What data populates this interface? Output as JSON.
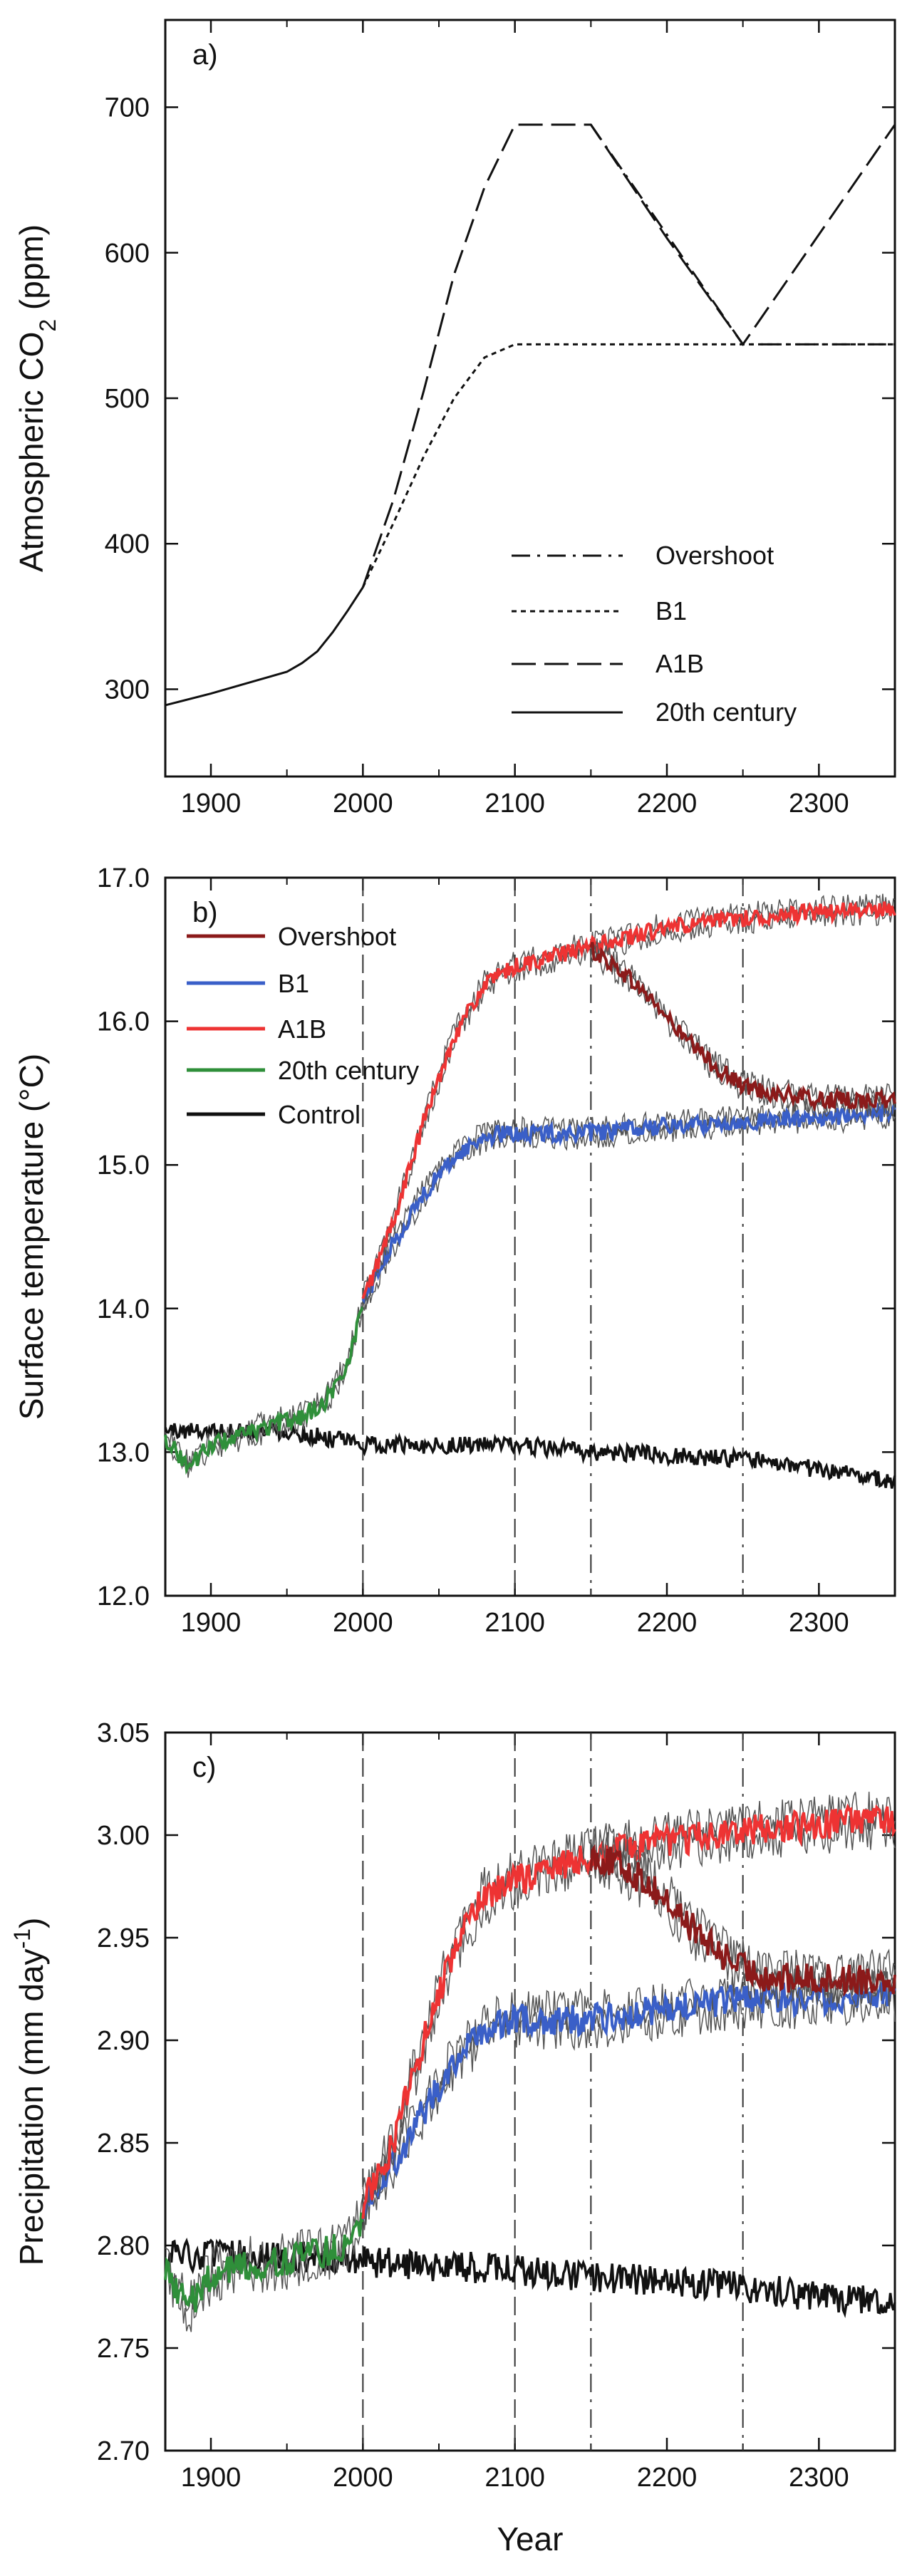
{
  "chart_data": [
    {
      "type": "line",
      "panel_label": "a)",
      "ylabel_main": "Atmospheric CO",
      "ylabel_sub": "2",
      "ylabel_tail": " (ppm)",
      "xlim": [
        1870,
        2350
      ],
      "ylim": [
        240,
        760
      ],
      "xticks": [
        "1900",
        "2000",
        "2100",
        "2200",
        "2300"
      ],
      "yticks": [
        "300",
        "400",
        "500",
        "600",
        "700"
      ],
      "legend_position": "lower-right",
      "series": [
        {
          "name": "Overshoot",
          "style": "dashdot",
          "x": [
            2150,
            2250,
            2350
          ],
          "y": [
            688,
            537,
            537
          ]
        },
        {
          "name": "B1",
          "style": "dotted",
          "x": [
            2000,
            2020,
            2040,
            2060,
            2080,
            2100,
            2350
          ],
          "y": [
            370,
            414,
            460,
            500,
            528,
            537,
            537
          ]
        },
        {
          "name": "A1B",
          "style": "longdash",
          "x": [
            2000,
            2020,
            2040,
            2060,
            2080,
            2100,
            2150,
            2200,
            2250,
            2350
          ],
          "y": [
            370,
            430,
            505,
            585,
            645,
            688,
            688,
            610,
            537,
            688
          ]
        },
        {
          "name": "20th century",
          "style": "solid",
          "x": [
            1870,
            1900,
            1930,
            1950,
            1960,
            1970,
            1980,
            1990,
            2000
          ],
          "y": [
            289,
            297,
            306,
            312,
            318,
            326,
            339,
            354,
            370
          ]
        }
      ]
    },
    {
      "type": "line",
      "panel_label": "b)",
      "ylabel": "Surface temperature (°C)",
      "xlim": [
        1870,
        2350
      ],
      "ylim": [
        12.0,
        17.0
      ],
      "xticks": [
        "1900",
        "2000",
        "2100",
        "2200",
        "2300"
      ],
      "yticks": [
        "12.0",
        "13.0",
        "14.0",
        "15.0",
        "16.0",
        "17.0"
      ],
      "vlines": [
        2000,
        2100,
        2150,
        2250
      ],
      "legend_position": "top-left",
      "series": [
        {
          "name": "Overshoot",
          "color": "#8b1a1a",
          "x": [
            2150,
            2170,
            2190,
            2210,
            2230,
            2250,
            2270,
            2300,
            2350
          ],
          "y": [
            16.5,
            16.35,
            16.15,
            15.9,
            15.7,
            15.55,
            15.5,
            15.45,
            15.45
          ]
        },
        {
          "name": "B1",
          "color": "#3a5fc8",
          "x": [
            2000,
            2020,
            2040,
            2060,
            2080,
            2100,
            2150,
            2200,
            2250,
            2300,
            2350
          ],
          "y": [
            14.05,
            14.45,
            14.8,
            15.05,
            15.2,
            15.22,
            15.22,
            15.27,
            15.3,
            15.33,
            15.36
          ]
        },
        {
          "name": "A1B",
          "color": "#ee3333",
          "x": [
            2000,
            2020,
            2040,
            2060,
            2080,
            2100,
            2150,
            2200,
            2250,
            2300,
            2350
          ],
          "y": [
            14.05,
            14.6,
            15.3,
            15.9,
            16.25,
            16.38,
            16.52,
            16.65,
            16.72,
            16.76,
            16.78
          ]
        },
        {
          "name": "20th century",
          "color": "#2f8f3a",
          "x": [
            1870,
            1885,
            1900,
            1915,
            1930,
            1945,
            1960,
            1975,
            1990,
            2000
          ],
          "y": [
            13.1,
            12.9,
            13.05,
            13.1,
            13.15,
            13.2,
            13.25,
            13.35,
            13.6,
            14.05
          ]
        },
        {
          "name": "Control",
          "color": "#111111",
          "x": [
            1870,
            1900,
            1950,
            2000,
            2050,
            2100,
            2150,
            2200,
            2250,
            2300,
            2350
          ],
          "y": [
            13.15,
            13.15,
            13.15,
            13.05,
            13.05,
            13.05,
            13.0,
            12.98,
            12.95,
            12.88,
            12.8
          ]
        }
      ]
    },
    {
      "type": "line",
      "panel_label": "c)",
      "ylabel_main": "Precipitation (mm day",
      "ylabel_sup": "-1",
      "ylabel_tail": ")",
      "xlabel": "Year",
      "xlim": [
        1870,
        2350
      ],
      "ylim": [
        2.7,
        3.05
      ],
      "xticks": [
        "1900",
        "2000",
        "2100",
        "2200",
        "2300"
      ],
      "yticks": [
        "2.70",
        "2.75",
        "2.80",
        "2.85",
        "2.90",
        "2.95",
        "3.00",
        "3.05"
      ],
      "vlines": [
        2000,
        2100,
        2150,
        2250
      ],
      "series": [
        {
          "name": "Overshoot",
          "color": "#8b1a1a",
          "x": [
            2150,
            2170,
            2190,
            2210,
            2230,
            2250,
            2270,
            2300,
            2350
          ],
          "y": [
            2.99,
            2.985,
            2.975,
            2.96,
            2.945,
            2.935,
            2.93,
            2.93,
            2.93
          ]
        },
        {
          "name": "B1",
          "color": "#3a5fc8",
          "x": [
            2000,
            2020,
            2040,
            2060,
            2080,
            2100,
            2150,
            2200,
            2250,
            2300,
            2350
          ],
          "y": [
            2.82,
            2.84,
            2.865,
            2.89,
            2.905,
            2.91,
            2.91,
            2.915,
            2.92,
            2.92,
            2.922
          ]
        },
        {
          "name": "A1B",
          "color": "#ee3333",
          "x": [
            2000,
            2020,
            2040,
            2060,
            2080,
            2100,
            2150,
            2200,
            2250,
            2300,
            2350
          ],
          "y": [
            2.82,
            2.85,
            2.9,
            2.945,
            2.97,
            2.978,
            2.99,
            2.997,
            3.002,
            3.005,
            3.008
          ]
        },
        {
          "name": "20th century",
          "color": "#2f8f3a",
          "x": [
            1870,
            1885,
            1900,
            1915,
            1930,
            1945,
            1960,
            1975,
            1990,
            2000
          ],
          "y": [
            2.79,
            2.77,
            2.785,
            2.79,
            2.79,
            2.792,
            2.795,
            2.797,
            2.8,
            2.815
          ]
        },
        {
          "name": "Control",
          "color": "#111111",
          "x": [
            1870,
            1900,
            1950,
            2000,
            2050,
            2100,
            2150,
            2200,
            2250,
            2300,
            2350
          ],
          "y": [
            2.795,
            2.795,
            2.795,
            2.792,
            2.79,
            2.788,
            2.785,
            2.783,
            2.78,
            2.775,
            2.772
          ]
        }
      ]
    }
  ]
}
